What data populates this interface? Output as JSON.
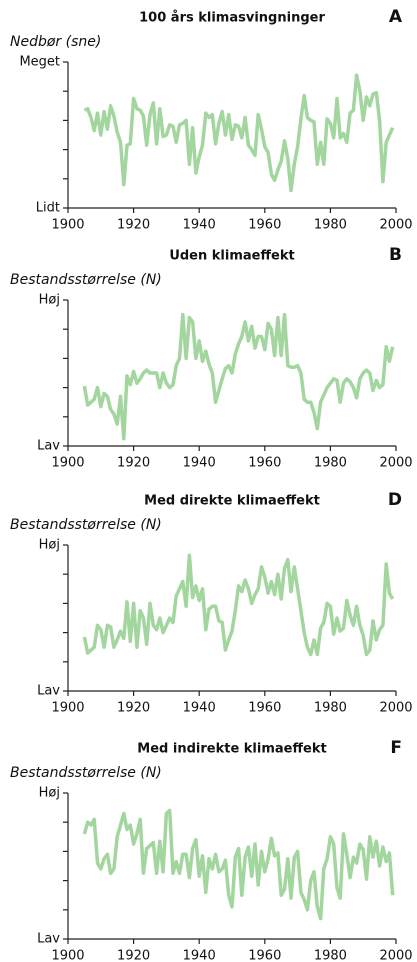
{
  "chart_data": [
    {
      "type": "line",
      "title": "100 års klimasvingninger",
      "panel_label": "A",
      "ylabel": "Nedbør (sne)",
      "color": "#a3d69e",
      "x": [
        1905,
        1906,
        1907,
        1908,
        1909,
        1910,
        1911,
        1912,
        1913,
        1914,
        1915,
        1916,
        1917,
        1918,
        1919,
        1920,
        1921,
        1922,
        1923,
        1924,
        1925,
        1926,
        1927,
        1928,
        1929,
        1930,
        1931,
        1932,
        1933,
        1934,
        1935,
        1936,
        1937,
        1938,
        1939,
        1940,
        1941,
        1942,
        1943,
        1944,
        1945,
        1946,
        1947,
        1948,
        1949,
        1950,
        1951,
        1952,
        1953,
        1954,
        1955,
        1956,
        1957,
        1958,
        1959,
        1960,
        1961,
        1962,
        1963,
        1964,
        1965,
        1966,
        1967,
        1968,
        1969,
        1970,
        1971,
        1972,
        1973,
        1974,
        1975,
        1976,
        1977,
        1978,
        1979,
        1980,
        1981,
        1982,
        1983,
        1984,
        1985,
        1986,
        1987,
        1988,
        1989,
        1990,
        1991,
        1992,
        1993,
        1994,
        1995,
        1996,
        1997,
        1998,
        1999
      ],
      "values": [
        6.7,
        6.8,
        6.2,
        5.3,
        6.5,
        5.0,
        6.6,
        5.4,
        7.0,
        6.3,
        5.2,
        4.5,
        1.6,
        4.3,
        4.4,
        7.5,
        6.8,
        6.7,
        6.3,
        4.3,
        6.4,
        7.2,
        4.4,
        6.8,
        4.9,
        5.0,
        5.7,
        5.6,
        4.5,
        5.7,
        5.8,
        6.0,
        3.0,
        5.5,
        2.4,
        3.5,
        4.3,
        6.5,
        6.2,
        6.4,
        4.4,
        5.8,
        6.6,
        5.0,
        6.4,
        4.7,
        5.7,
        5.6,
        4.8,
        6.2,
        4.3,
        4.0,
        3.6,
        6.4,
        5.4,
        4.2,
        3.8,
        2.3,
        1.9,
        2.6,
        3.2,
        4.6,
        3.4,
        1.2,
        3.0,
        4.2,
        6.1,
        7.7,
        6.2,
        6.0,
        5.9,
        3.0,
        4.5,
        3.0,
        6.1,
        5.8,
        4.8,
        7.5,
        4.8,
        5.1,
        4.5,
        6.5,
        6.7,
        9.1,
        8.0,
        6.0,
        7.6,
        7.0,
        7.8,
        7.9,
        6.0,
        1.8,
        4.5,
        5.0,
        5.5
      ],
      "xlim": [
        1900,
        2000
      ],
      "xticks": [
        1900,
        1920,
        1940,
        1960,
        1980,
        2000
      ],
      "ylim": [
        0,
        10
      ],
      "yticks": [
        {
          "value": 0,
          "label": "Lidt"
        },
        {
          "value": 10,
          "label": "Meget"
        }
      ],
      "yticks_minor": [
        2,
        4,
        6,
        8
      ]
    },
    {
      "type": "line",
      "title": "Uden klimaeffekt",
      "panel_label": "B",
      "ylabel": "Bestandsstørrelse (N)",
      "color": "#a3d69e",
      "x": [
        1905,
        1906,
        1907,
        1908,
        1909,
        1910,
        1911,
        1912,
        1913,
        1914,
        1915,
        1916,
        1917,
        1918,
        1919,
        1920,
        1921,
        1922,
        1923,
        1924,
        1925,
        1926,
        1927,
        1928,
        1929,
        1930,
        1931,
        1932,
        1933,
        1934,
        1935,
        1936,
        1937,
        1938,
        1939,
        1940,
        1941,
        1942,
        1943,
        1944,
        1945,
        1946,
        1947,
        1948,
        1949,
        1950,
        1951,
        1952,
        1953,
        1954,
        1955,
        1956,
        1957,
        1958,
        1959,
        1960,
        1961,
        1962,
        1963,
        1964,
        1965,
        1966,
        1967,
        1968,
        1969,
        1970,
        1971,
        1972,
        1973,
        1974,
        1975,
        1976,
        1977,
        1978,
        1979,
        1980,
        1981,
        1982,
        1983,
        1984,
        1985,
        1986,
        1987,
        1988,
        1989,
        1990,
        1991,
        1992,
        1993,
        1994,
        1995,
        1996,
        1997,
        1998,
        1999
      ],
      "values": [
        4.1,
        2.8,
        3.0,
        3.2,
        4.0,
        2.7,
        3.6,
        3.4,
        2.5,
        2.2,
        1.5,
        3.4,
        0.5,
        4.8,
        4.2,
        5.1,
        4.3,
        4.6,
        5.0,
        5.2,
        5.0,
        5.0,
        5.0,
        4.0,
        5.0,
        4.3,
        4.0,
        4.2,
        5.5,
        6.0,
        9.0,
        6.0,
        8.8,
        8.5,
        6.0,
        7.2,
        5.8,
        6.5,
        5.6,
        5.0,
        3.0,
        3.8,
        4.6,
        5.3,
        5.5,
        5.0,
        6.3,
        7.0,
        7.5,
        8.5,
        7.2,
        8.2,
        6.7,
        7.5,
        7.5,
        6.6,
        8.4,
        8.0,
        6.2,
        8.8,
        6.2,
        9.0,
        5.5,
        5.4,
        5.4,
        5.5,
        5.0,
        3.2,
        3.0,
        3.0,
        2.3,
        1.2,
        3.0,
        3.5,
        4.0,
        4.3,
        4.6,
        4.5,
        3.0,
        4.3,
        4.6,
        4.4,
        4.0,
        3.3,
        4.6,
        5.0,
        5.2,
        5.0,
        3.8,
        4.5,
        4.0,
        4.2,
        6.8,
        5.8,
        6.8
      ],
      "xlim": [
        1900,
        2000
      ],
      "xticks": [
        1900,
        1920,
        1940,
        1960,
        1980,
        2000
      ],
      "ylim": [
        0,
        10
      ],
      "yticks": [
        {
          "value": 0,
          "label": "Lav"
        },
        {
          "value": 10,
          "label": "Høj"
        }
      ],
      "yticks_minor": [
        2,
        4,
        6,
        8
      ]
    },
    {
      "type": "line",
      "title": "Med direkte klimaeffekt",
      "panel_label": "D",
      "ylabel": "Bestandsstørrelse (N)",
      "color": "#a3d69e",
      "x": [
        1905,
        1906,
        1907,
        1908,
        1909,
        1910,
        1911,
        1912,
        1913,
        1914,
        1915,
        1916,
        1917,
        1918,
        1919,
        1920,
        1921,
        1922,
        1923,
        1924,
        1925,
        1926,
        1927,
        1928,
        1929,
        1930,
        1931,
        1932,
        1933,
        1934,
        1935,
        1936,
        1937,
        1938,
        1939,
        1940,
        1941,
        1942,
        1943,
        1944,
        1945,
        1946,
        1947,
        1948,
        1949,
        1950,
        1951,
        1952,
        1953,
        1954,
        1955,
        1956,
        1957,
        1958,
        1959,
        1960,
        1961,
        1962,
        1963,
        1964,
        1965,
        1966,
        1967,
        1968,
        1969,
        1970,
        1971,
        1972,
        1973,
        1974,
        1975,
        1976,
        1977,
        1978,
        1979,
        1980,
        1981,
        1982,
        1983,
        1984,
        1985,
        1986,
        1987,
        1988,
        1989,
        1990,
        1991,
        1992,
        1993,
        1994,
        1995,
        1996,
        1997,
        1998,
        1999
      ],
      "values": [
        3.7,
        2.6,
        2.8,
        3.0,
        4.5,
        4.2,
        3.0,
        4.5,
        4.4,
        3.0,
        3.5,
        4.1,
        3.6,
        6.1,
        3.4,
        6.0,
        3.0,
        5.5,
        5.0,
        3.2,
        6.0,
        4.5,
        4.2,
        5.0,
        4.0,
        4.5,
        5.0,
        4.7,
        6.5,
        7.0,
        7.5,
        5.8,
        9.3,
        6.4,
        7.2,
        6.2,
        7.0,
        4.2,
        5.6,
        5.8,
        5.8,
        4.8,
        4.7,
        2.8,
        3.5,
        4.1,
        5.5,
        7.2,
        6.8,
        7.6,
        7.0,
        6.0,
        6.6,
        7.0,
        8.5,
        7.8,
        6.7,
        7.5,
        6.6,
        8.0,
        6.3,
        8.4,
        9.0,
        6.8,
        8.5,
        7.0,
        5.5,
        4.0,
        3.0,
        2.5,
        3.5,
        2.5,
        4.3,
        4.7,
        6.0,
        5.8,
        3.9,
        5.0,
        4.1,
        4.3,
        6.2,
        5.2,
        4.5,
        5.8,
        4.5,
        3.8,
        2.5,
        2.8,
        4.8,
        3.5,
        4.2,
        4.5,
        8.7,
        6.7,
        6.3
      ],
      "xlim": [
        1900,
        2000
      ],
      "xticks": [
        1900,
        1920,
        1940,
        1960,
        1980,
        2000
      ],
      "ylim": [
        0,
        10
      ],
      "yticks": [
        {
          "value": 0,
          "label": "Lav"
        },
        {
          "value": 10,
          "label": "Høj"
        }
      ],
      "yticks_minor": [
        2,
        4,
        6,
        8
      ]
    },
    {
      "type": "line",
      "title": "Med indirekte klimaeffekt",
      "panel_label": "F",
      "ylabel": "Bestandsstørrelse (N)",
      "color": "#a3d69e",
      "x": [
        1905,
        1906,
        1907,
        1908,
        1909,
        1910,
        1911,
        1912,
        1913,
        1914,
        1915,
        1916,
        1917,
        1918,
        1919,
        1920,
        1921,
        1922,
        1923,
        1924,
        1925,
        1926,
        1927,
        1928,
        1929,
        1930,
        1931,
        1932,
        1933,
        1934,
        1935,
        1936,
        1937,
        1938,
        1939,
        1940,
        1941,
        1942,
        1943,
        1944,
        1945,
        1946,
        1947,
        1948,
        1949,
        1950,
        1951,
        1952,
        1953,
        1954,
        1955,
        1956,
        1957,
        1958,
        1959,
        1960,
        1961,
        1962,
        1963,
        1964,
        1965,
        1966,
        1967,
        1968,
        1969,
        1970,
        1971,
        1972,
        1973,
        1974,
        1975,
        1976,
        1977,
        1978,
        1979,
        1980,
        1981,
        1982,
        1983,
        1984,
        1985,
        1986,
        1987,
        1988,
        1989,
        1990,
        1991,
        1992,
        1993,
        1994,
        1995,
        1996,
        1997,
        1998,
        1999
      ],
      "values": [
        7.2,
        8.0,
        7.8,
        8.2,
        5.2,
        4.8,
        5.5,
        5.8,
        4.5,
        4.8,
        7.0,
        7.8,
        8.6,
        7.5,
        7.8,
        6.5,
        7.2,
        8.2,
        4.5,
        6.2,
        6.4,
        6.6,
        4.5,
        6.7,
        4.6,
        8.6,
        8.8,
        4.5,
        5.3,
        4.5,
        5.8,
        5.8,
        4.2,
        6.2,
        6.8,
        4.3,
        5.7,
        3.2,
        5.5,
        4.8,
        5.8,
        4.6,
        4.8,
        5.4,
        3.0,
        2.2,
        5.6,
        6.2,
        3.0,
        5.6,
        6.3,
        4.3,
        6.5,
        3.7,
        6.0,
        4.6,
        5.5,
        6.9,
        5.7,
        5.9,
        3.0,
        3.4,
        5.5,
        2.8,
        5.6,
        6.0,
        3.2,
        2.7,
        2.0,
        4.0,
        4.6,
        2.2,
        1.4,
        4.8,
        5.5,
        7.0,
        6.5,
        3.5,
        2.8,
        7.2,
        5.8,
        4.2,
        5.6,
        5.2,
        6.5,
        6.1,
        4.1,
        7.0,
        5.6,
        6.7,
        5.0,
        6.3,
        5.3,
        5.9,
        3.0
      ],
      "xlim": [
        1900,
        2000
      ],
      "xticks": [
        1900,
        1920,
        1940,
        1960,
        1980,
        2000
      ],
      "ylim": [
        0,
        10
      ],
      "yticks": [
        {
          "value": 0,
          "label": "Lav"
        },
        {
          "value": 10,
          "label": "Høj"
        }
      ],
      "yticks_minor": [
        2,
        4,
        6,
        8
      ]
    }
  ]
}
